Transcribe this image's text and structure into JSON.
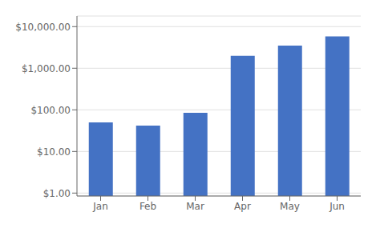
{
  "chart_data": {
    "type": "bar",
    "categories": [
      "Jan",
      "Feb",
      "Mar",
      "Apr",
      "May",
      "Jun"
    ],
    "values": [
      50,
      42,
      85,
      2000,
      3500,
      5800
    ],
    "color": "#4472C4",
    "log": "y",
    "ylim": [
      0.85,
      18000
    ],
    "yticks": [
      {
        "value": 1,
        "label": "$1.00"
      },
      {
        "value": 10,
        "label": "$10.00"
      },
      {
        "value": 100,
        "label": "$100.00"
      },
      {
        "value": 1000,
        "label": "$1,000.00"
      },
      {
        "value": 10000,
        "label": "$10,000.00"
      }
    ],
    "grid": true
  }
}
